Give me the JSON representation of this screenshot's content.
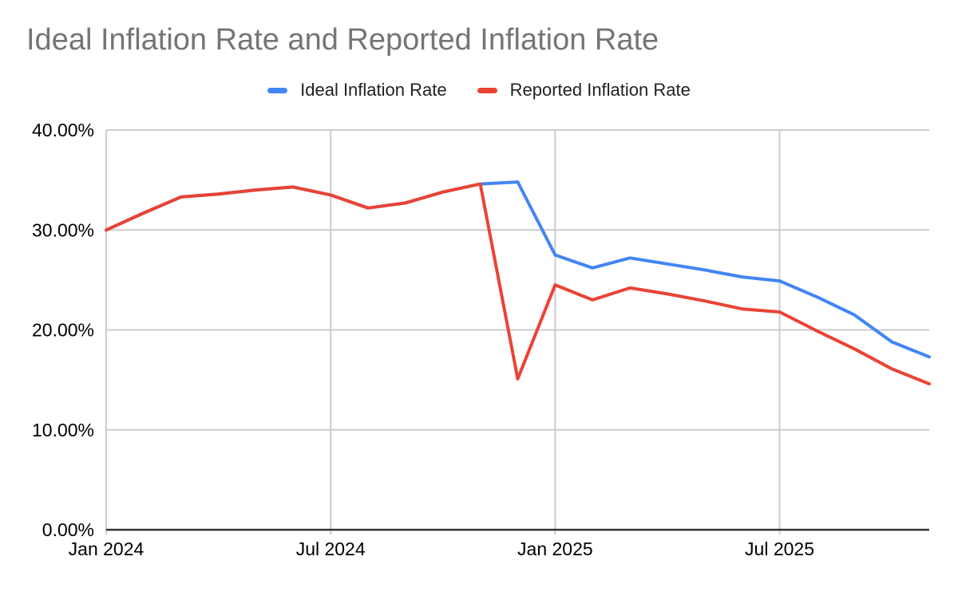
{
  "chart": {
    "title": "Ideal Inflation Rate and Reported Inflation Rate"
  },
  "chart_data": {
    "type": "line",
    "title": "Ideal Inflation Rate and Reported Inflation Rate",
    "categories": [
      "Jan 2024",
      "Feb 2024",
      "Mar 2024",
      "Apr 2024",
      "May 2024",
      "Jun 2024",
      "Jul 2024",
      "Aug 2024",
      "Sep 2024",
      "Oct 2024",
      "Nov 2024",
      "Dec 2024",
      "Jan 2025",
      "Feb 2025",
      "Mar 2025",
      "Apr 2025",
      "May 2025",
      "Jun 2025",
      "Jul 2025",
      "Aug 2025",
      "Sep 2025",
      "Oct 2025",
      "Nov 2025"
    ],
    "series": [
      {
        "name": "Ideal Inflation Rate",
        "color": "#4285F4",
        "values": [
          30.0,
          31.7,
          33.3,
          33.6,
          34.0,
          34.3,
          33.5,
          32.2,
          32.7,
          33.8,
          34.6,
          34.8,
          27.5,
          26.2,
          27.2,
          26.6,
          26.0,
          25.3,
          24.9,
          23.3,
          21.5,
          18.8,
          17.3
        ]
      },
      {
        "name": "Reported Inflation Rate",
        "color": "#EA4335",
        "values": [
          30.0,
          31.7,
          33.3,
          33.6,
          34.0,
          34.3,
          33.5,
          32.2,
          32.7,
          33.8,
          34.6,
          15.1,
          24.5,
          23.0,
          24.2,
          23.6,
          22.9,
          22.1,
          21.8,
          19.9,
          18.1,
          16.1,
          14.6
        ]
      }
    ],
    "ylim": [
      0,
      40
    ],
    "y_ticks": [
      {
        "value": 0,
        "label": "0.00%"
      },
      {
        "value": 10,
        "label": "10.00%"
      },
      {
        "value": 20,
        "label": "20.00%"
      },
      {
        "value": 30,
        "label": "30.00%"
      },
      {
        "value": 40,
        "label": "40.00%"
      }
    ],
    "x_ticks": [
      {
        "index": 0,
        "label": "Jan 2024"
      },
      {
        "index": 6,
        "label": "Jul 2024"
      },
      {
        "index": 12,
        "label": "Jan 2025"
      },
      {
        "index": 18,
        "label": "Jul 2025"
      }
    ],
    "grid": true,
    "legend_position": "top",
    "colors": {
      "grid": "#cccccc",
      "axis": "#333333",
      "axis_label": "#000000",
      "title": "#757575",
      "legend_text": "#212121",
      "background": "#ffffff"
    }
  }
}
